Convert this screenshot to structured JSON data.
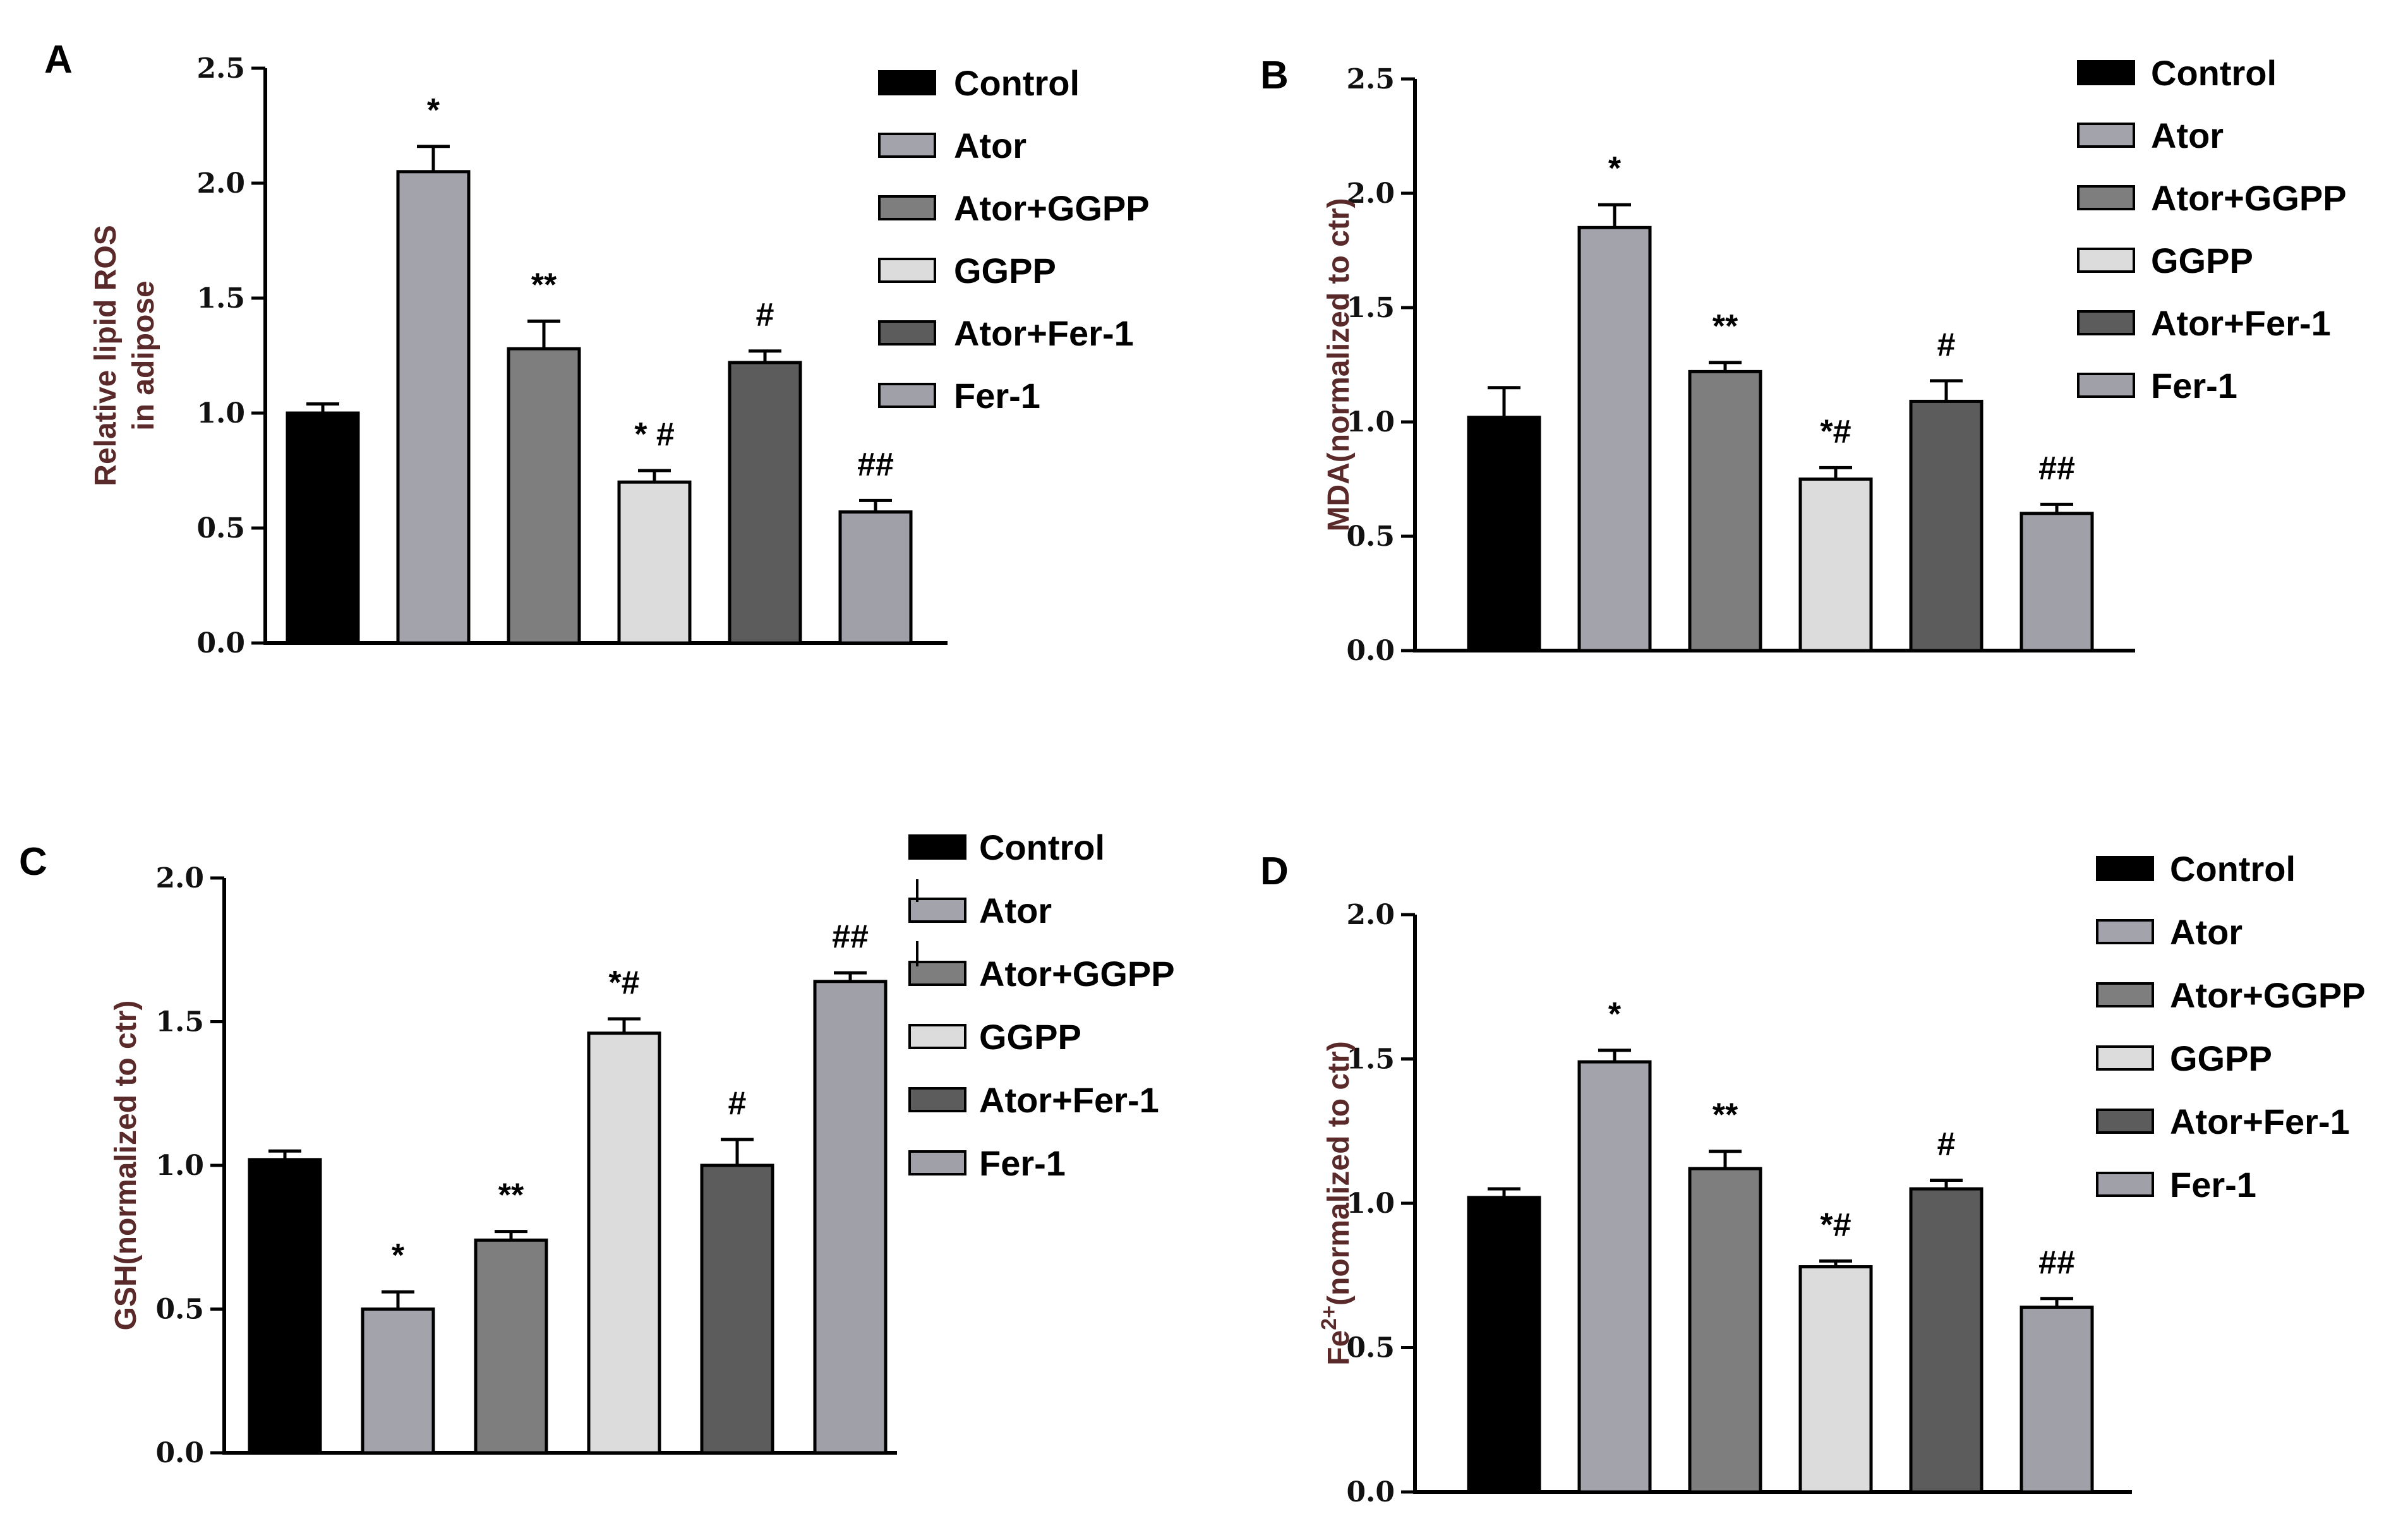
{
  "colors": {
    "Control": "#000000",
    "Ator": "#a3a3ab",
    "Ator+GGPP": "#7e7e7e",
    "GGPP": "#dcdcdc",
    "Ator+Fer-1": "#5c5c5c",
    "Fer-1": "#a0a0a8"
  },
  "chart_data": [
    {
      "type": "bar",
      "panel_label": "A",
      "title": "",
      "xlabel": "",
      "ylabel": "Relative lipid ROS in adipose",
      "ylabel_lines": [
        "Relative lipid ROS",
        "in adipose"
      ],
      "ylim": [
        0,
        2.5
      ],
      "yticks": [
        "0.0",
        "0.5",
        "1.0",
        "1.5",
        "2.0",
        "2.5"
      ],
      "categories": [
        "Control",
        "Ator",
        "Ator+GGPP",
        "GGPP",
        "Ator+Fer-1",
        "Fer-1"
      ],
      "values": [
        1.0,
        2.05,
        1.28,
        0.7,
        1.22,
        0.57
      ],
      "errors": [
        0.04,
        0.11,
        0.12,
        0.05,
        0.05,
        0.05
      ],
      "annotations": [
        "",
        "*",
        "**",
        "* #",
        "#",
        "##"
      ],
      "legend": [
        "Control",
        "Ator",
        "Ator+GGPP",
        "GGPP",
        "Ator+Fer-1",
        "Fer-1"
      ],
      "legend_position": "right"
    },
    {
      "type": "bar",
      "panel_label": "B",
      "title": "",
      "xlabel": "",
      "ylabel": "MDA(normalized to ctr)",
      "ylabel_lines": [
        "MDA(normalized to ctr)"
      ],
      "ylim": [
        0,
        2.5
      ],
      "yticks": [
        "0.0",
        "0.5",
        "1.0",
        "1.5",
        "2.0",
        "2.5"
      ],
      "categories": [
        "Control",
        "Ator",
        "Ator+GGPP",
        "GGPP",
        "Ator+Fer-1",
        "Fer-1"
      ],
      "values": [
        1.02,
        1.85,
        1.22,
        0.75,
        1.09,
        0.6
      ],
      "errors": [
        0.13,
        0.1,
        0.04,
        0.05,
        0.09,
        0.04
      ],
      "annotations": [
        "",
        "*",
        "**",
        "*#",
        "#",
        "##"
      ],
      "legend": [
        "Control",
        "Ator",
        "Ator+GGPP",
        "GGPP",
        "Ator+Fer-1",
        "Fer-1"
      ],
      "legend_position": "right"
    },
    {
      "type": "bar",
      "panel_label": "C",
      "title": "",
      "xlabel": "",
      "ylabel": "GSH(normalized to ctr)",
      "ylabel_lines": [
        "GSH(normalized to ctr)"
      ],
      "ylim": [
        0,
        2.0
      ],
      "yticks": [
        "0.0",
        "0.5",
        "1.0",
        "1.5",
        "2.0"
      ],
      "categories": [
        "Control",
        "Ator",
        "Ator+GGPP",
        "GGPP",
        "Ator+Fer-1",
        "Fer-1"
      ],
      "values": [
        1.02,
        0.5,
        0.74,
        1.46,
        1.0,
        1.64
      ],
      "errors": [
        0.03,
        0.06,
        0.03,
        0.05,
        0.09,
        0.03
      ],
      "annotations": [
        "",
        "*",
        "**",
        "*#",
        "#",
        "##"
      ],
      "legend": [
        "Control",
        "Ator",
        "Ator+GGPP",
        "GGPP",
        "Ator+Fer-1",
        "Fer-1"
      ],
      "legend_position": "right"
    },
    {
      "type": "bar",
      "panel_label": "D",
      "title": "",
      "xlabel": "",
      "ylabel": "Fe2+(normalized to ctr)",
      "ylabel_lines": [
        "Fe2+(normalized to ctr)"
      ],
      "ylim": [
        0,
        2.0
      ],
      "yticks": [
        "0.0",
        "0.5",
        "1.0",
        "1.5",
        "2.0"
      ],
      "categories": [
        "Control",
        "Ator",
        "Ator+GGPP",
        "GGPP",
        "Ator+Fer-1",
        "Fer-1"
      ],
      "values": [
        1.02,
        1.49,
        1.12,
        0.78,
        1.05,
        0.64
      ],
      "errors": [
        0.03,
        0.04,
        0.06,
        0.02,
        0.03,
        0.03
      ],
      "annotations": [
        "",
        "*",
        "**",
        "*#",
        "#",
        "##"
      ],
      "legend": [
        "Control",
        "Ator",
        "Ator+GGPP",
        "GGPP",
        "Ator+Fer-1",
        "Fer-1"
      ],
      "legend_position": "right"
    }
  ]
}
